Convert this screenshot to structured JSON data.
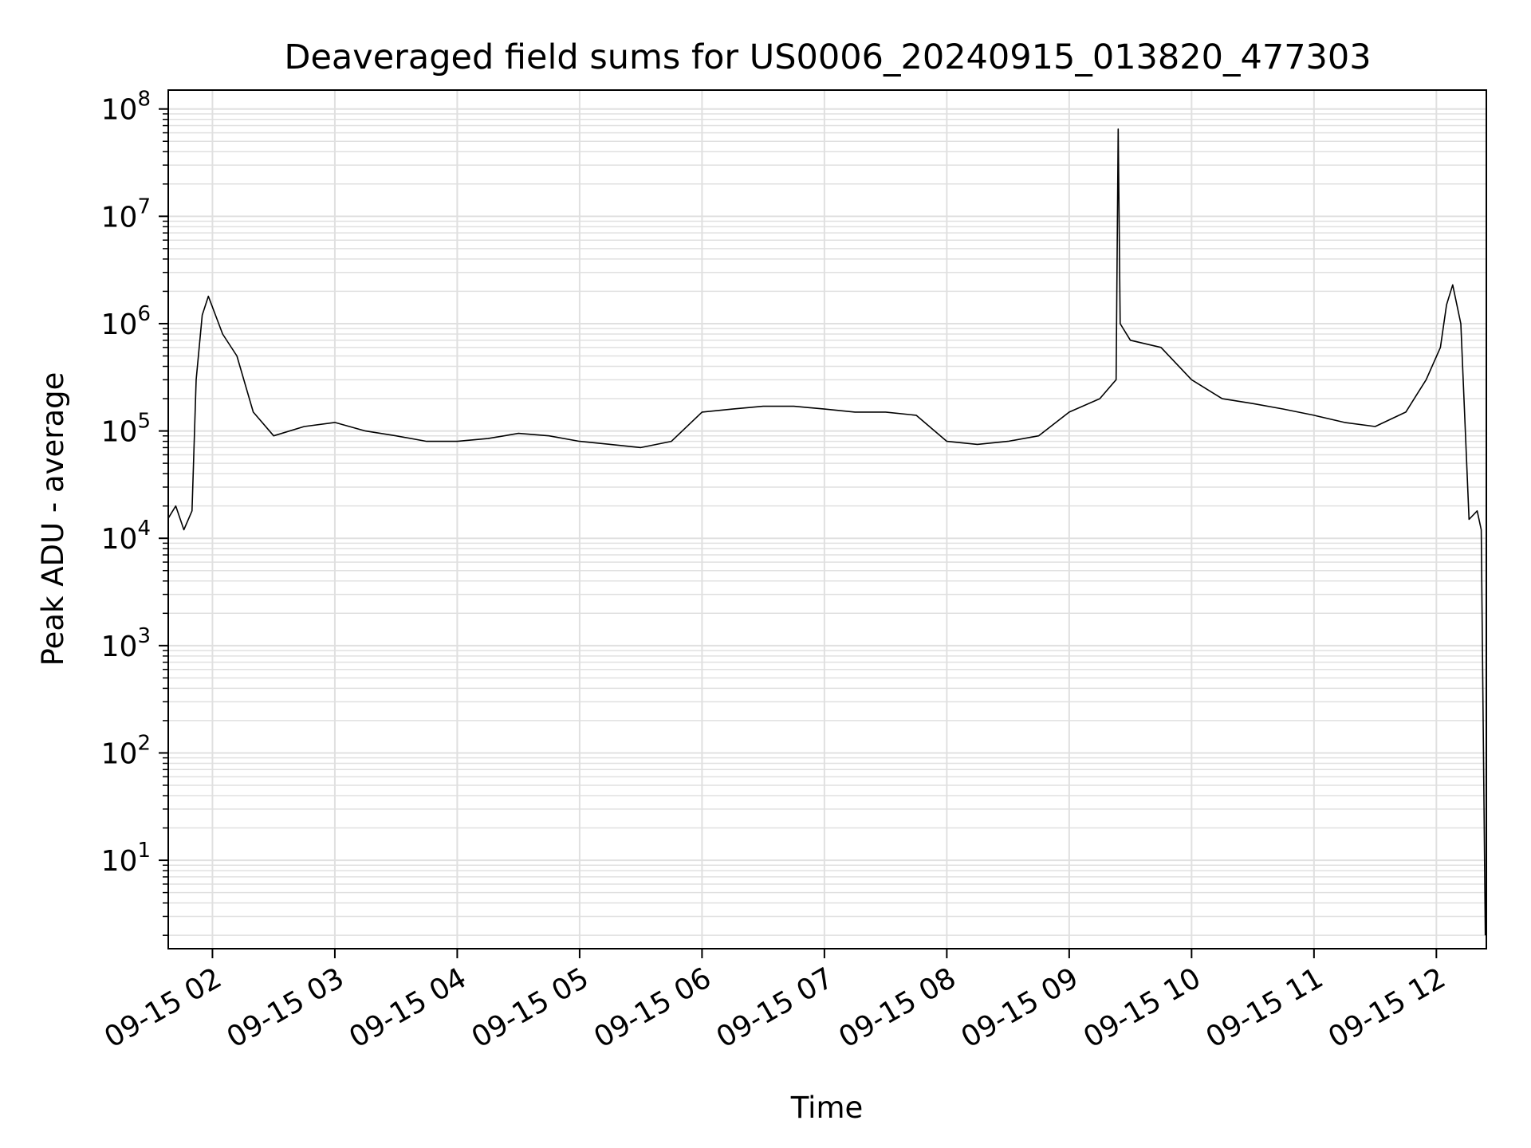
{
  "chart_data": {
    "type": "line",
    "title": "Deaveraged field sums for US0006_20240915_013820_477303",
    "xlabel": "Time",
    "ylabel": "Peak ADU - average",
    "yscale": "log",
    "ylim": [
      1.5,
      150000000
    ],
    "xlim": [
      "2024-09-15 01:38:20",
      "2024-09-15 12:24:30"
    ],
    "x_ticks": [
      "09-15 02",
      "09-15 03",
      "09-15 04",
      "09-15 05",
      "09-15 06",
      "09-15 07",
      "09-15 08",
      "09-15 09",
      "09-15 10",
      "09-15 11",
      "09-15 12"
    ],
    "y_ticks": [
      {
        "base": "10",
        "exp": "1",
        "value": 10
      },
      {
        "base": "10",
        "exp": "2",
        "value": 100
      },
      {
        "base": "10",
        "exp": "3",
        "value": 1000
      },
      {
        "base": "10",
        "exp": "4",
        "value": 10000
      },
      {
        "base": "10",
        "exp": "5",
        "value": 100000
      },
      {
        "base": "10",
        "exp": "6",
        "value": 1000000
      },
      {
        "base": "10",
        "exp": "7",
        "value": 10000000
      },
      {
        "base": "10",
        "exp": "8",
        "value": 100000000
      }
    ],
    "grid": true,
    "line_color": "#000000",
    "grid_color": "#e0e0e0",
    "series": [
      {
        "x": [
          "09-15 01:38",
          "09-15 01:42",
          "09-15 01:46",
          "09-15 01:50",
          "09-15 01:52",
          "09-15 01:55",
          "09-15 01:58",
          "09-15 02:05",
          "09-15 02:12",
          "09-15 02:20",
          "09-15 02:30",
          "09-15 02:45",
          "09-15 03:00",
          "09-15 03:15",
          "09-15 03:30",
          "09-15 03:45",
          "09-15 04:00",
          "09-15 04:15",
          "09-15 04:30",
          "09-15 04:45",
          "09-15 05:00",
          "09-15 05:15",
          "09-15 05:30",
          "09-15 05:45",
          "09-15 06:00",
          "09-15 06:15",
          "09-15 06:30",
          "09-15 06:45",
          "09-15 07:00",
          "09-15 07:15",
          "09-15 07:30",
          "09-15 07:45",
          "09-15 08:00",
          "09-15 08:15",
          "09-15 08:30",
          "09-15 08:45",
          "09-15 09:00",
          "09-15 09:15",
          "09-15 09:23",
          "09-15 09:24",
          "09-15 09:25",
          "09-15 09:30",
          "09-15 09:45",
          "09-15 10:00",
          "09-15 10:15",
          "09-15 10:30",
          "09-15 10:45",
          "09-15 11:00",
          "09-15 11:15",
          "09-15 11:30",
          "09-15 11:45",
          "09-15 11:55",
          "09-15 12:02",
          "09-15 12:05",
          "09-15 12:08",
          "09-15 12:12",
          "09-15 12:16",
          "09-15 12:20",
          "09-15 12:22",
          "09-15 12:24"
        ],
        "y": [
          15000,
          20000,
          12000,
          18000,
          300000,
          1200000,
          1800000,
          800000,
          500000,
          150000,
          90000,
          110000,
          120000,
          100000,
          90000,
          80000,
          80000,
          85000,
          95000,
          90000,
          80000,
          75000,
          70000,
          80000,
          150000,
          160000,
          170000,
          170000,
          160000,
          150000,
          150000,
          140000,
          80000,
          75000,
          80000,
          90000,
          150000,
          200000,
          300000,
          65000000,
          1000000,
          700000,
          600000,
          300000,
          200000,
          180000,
          160000,
          140000,
          120000,
          110000,
          150000,
          300000,
          600000,
          1500000,
          2300000,
          1000000,
          15000,
          18000,
          12000,
          2
        ]
      }
    ]
  }
}
